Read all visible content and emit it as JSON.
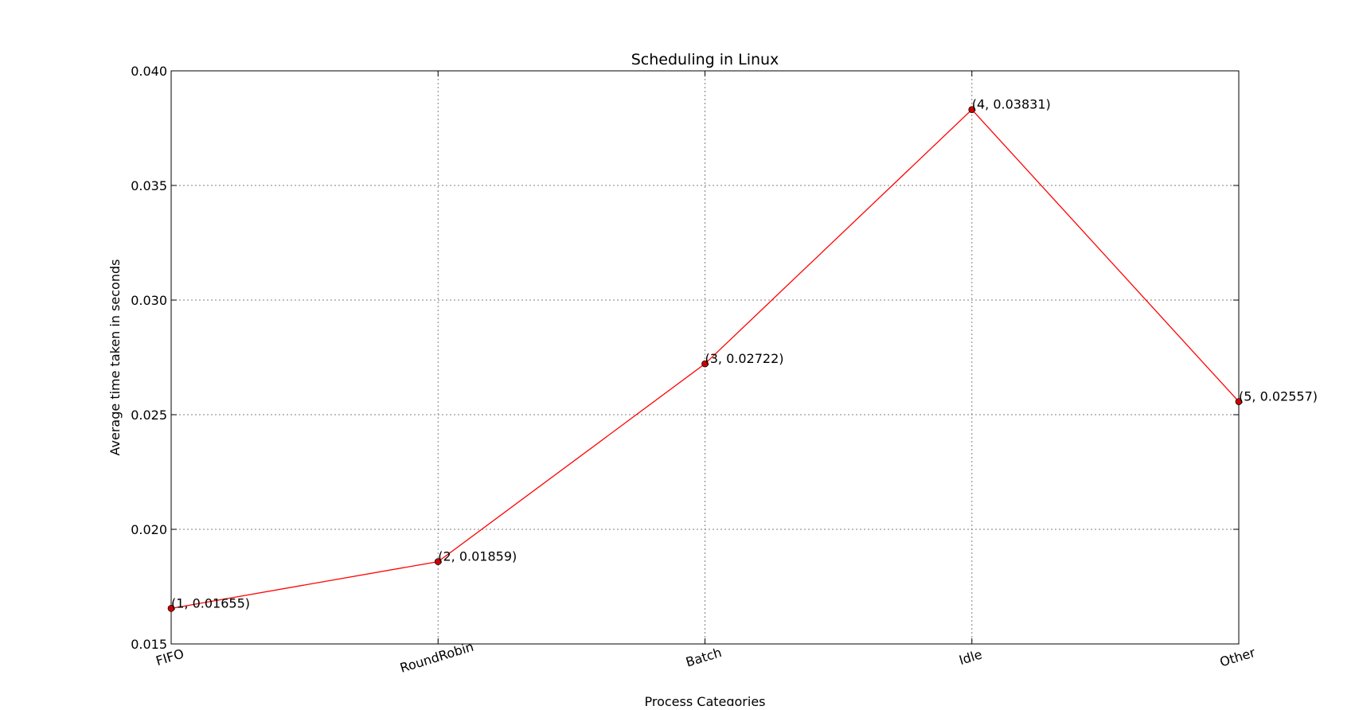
{
  "chart_data": {
    "type": "line",
    "title": "Scheduling in Linux",
    "xlabel": "Process Categories",
    "ylabel": "Average time taken in seconds",
    "categories": [
      "FIFO",
      "RoundRobin",
      "Batch",
      "Idle",
      "Other"
    ],
    "x": [
      1,
      2,
      3,
      4,
      5
    ],
    "series": [
      {
        "values": [
          0.01655,
          0.01859,
          0.02722,
          0.03831,
          0.02557
        ],
        "color": "#ff0000",
        "marker_color": "#cc0000"
      }
    ],
    "point_labels": [
      "(1, 0.01655)",
      "(2, 0.01859)",
      "(3, 0.02722)",
      "(4, 0.03831)",
      "(5, 0.02557)"
    ],
    "xlim": [
      1,
      5
    ],
    "ylim": [
      0.015,
      0.04
    ],
    "yticks": [
      "0.015",
      "0.020",
      "0.025",
      "0.030",
      "0.035",
      "0.040"
    ],
    "grid": true,
    "legend": "none"
  }
}
